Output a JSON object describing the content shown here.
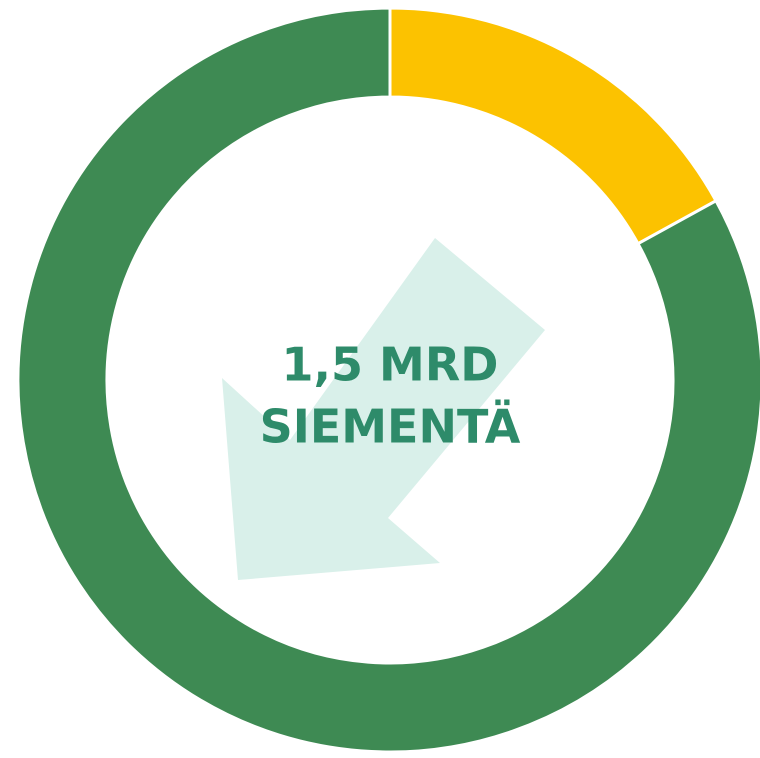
{
  "chart_data": {
    "type": "donut",
    "values": [
      17,
      83
    ],
    "colors": [
      "#fcc200",
      "#3e8a53"
    ],
    "center_text": [
      "1,5 MRD",
      "SIEMENTÄ"
    ]
  }
}
